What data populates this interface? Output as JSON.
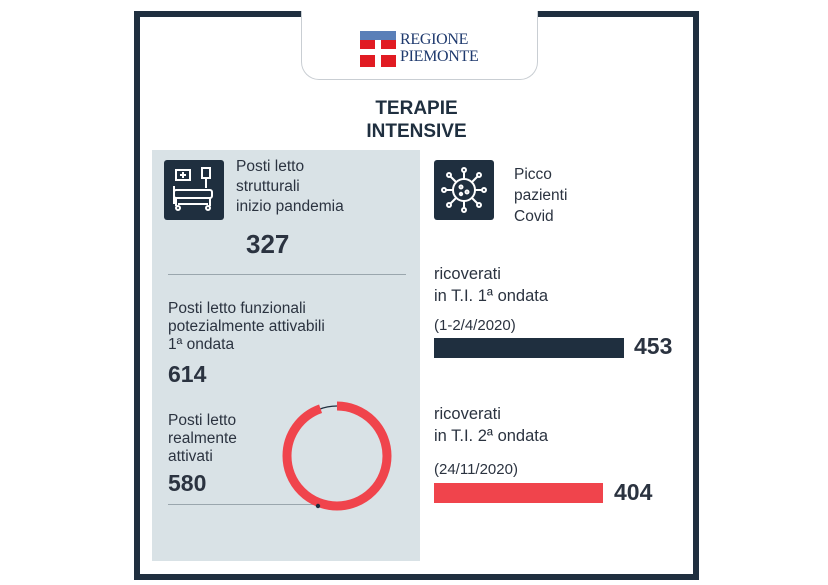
{
  "logo": {
    "line1": "REGIONE",
    "line2": "PIEMONTE"
  },
  "title": {
    "line1": "TERAPIE",
    "line2": "INTENSIVE"
  },
  "left": {
    "beds_label": [
      "Posti letto",
      "strutturali",
      "inizio pandemia"
    ],
    "beds_value": "327",
    "potential_label": [
      "Posti letto funzionali",
      "potezialmente attivabili",
      "1ª ondata"
    ],
    "potential_value": "614",
    "activated_label": [
      "Posti letto",
      "realmente",
      "attivati"
    ],
    "activated_value": "580",
    "activated_ratio": 0.945,
    "icon": "hospital-bed-icon"
  },
  "right": {
    "peak_label": [
      "Picco",
      "pazienti",
      "Covid"
    ],
    "icon": "virus-icon",
    "wave1_label": [
      "ricoverati",
      "in T.I. 1ª ondata"
    ],
    "wave1_date": "(1-2/4/2020)",
    "wave1_value": "453",
    "wave2_label": [
      "ricoverati",
      "in T.I. 2ª ondata"
    ],
    "wave2_date": "(24/11/2020)",
    "wave2_value": "404"
  },
  "colors": {
    "dark": "#1f2f3f",
    "red": "#f0444c",
    "panel": "#d9e2e6"
  }
}
